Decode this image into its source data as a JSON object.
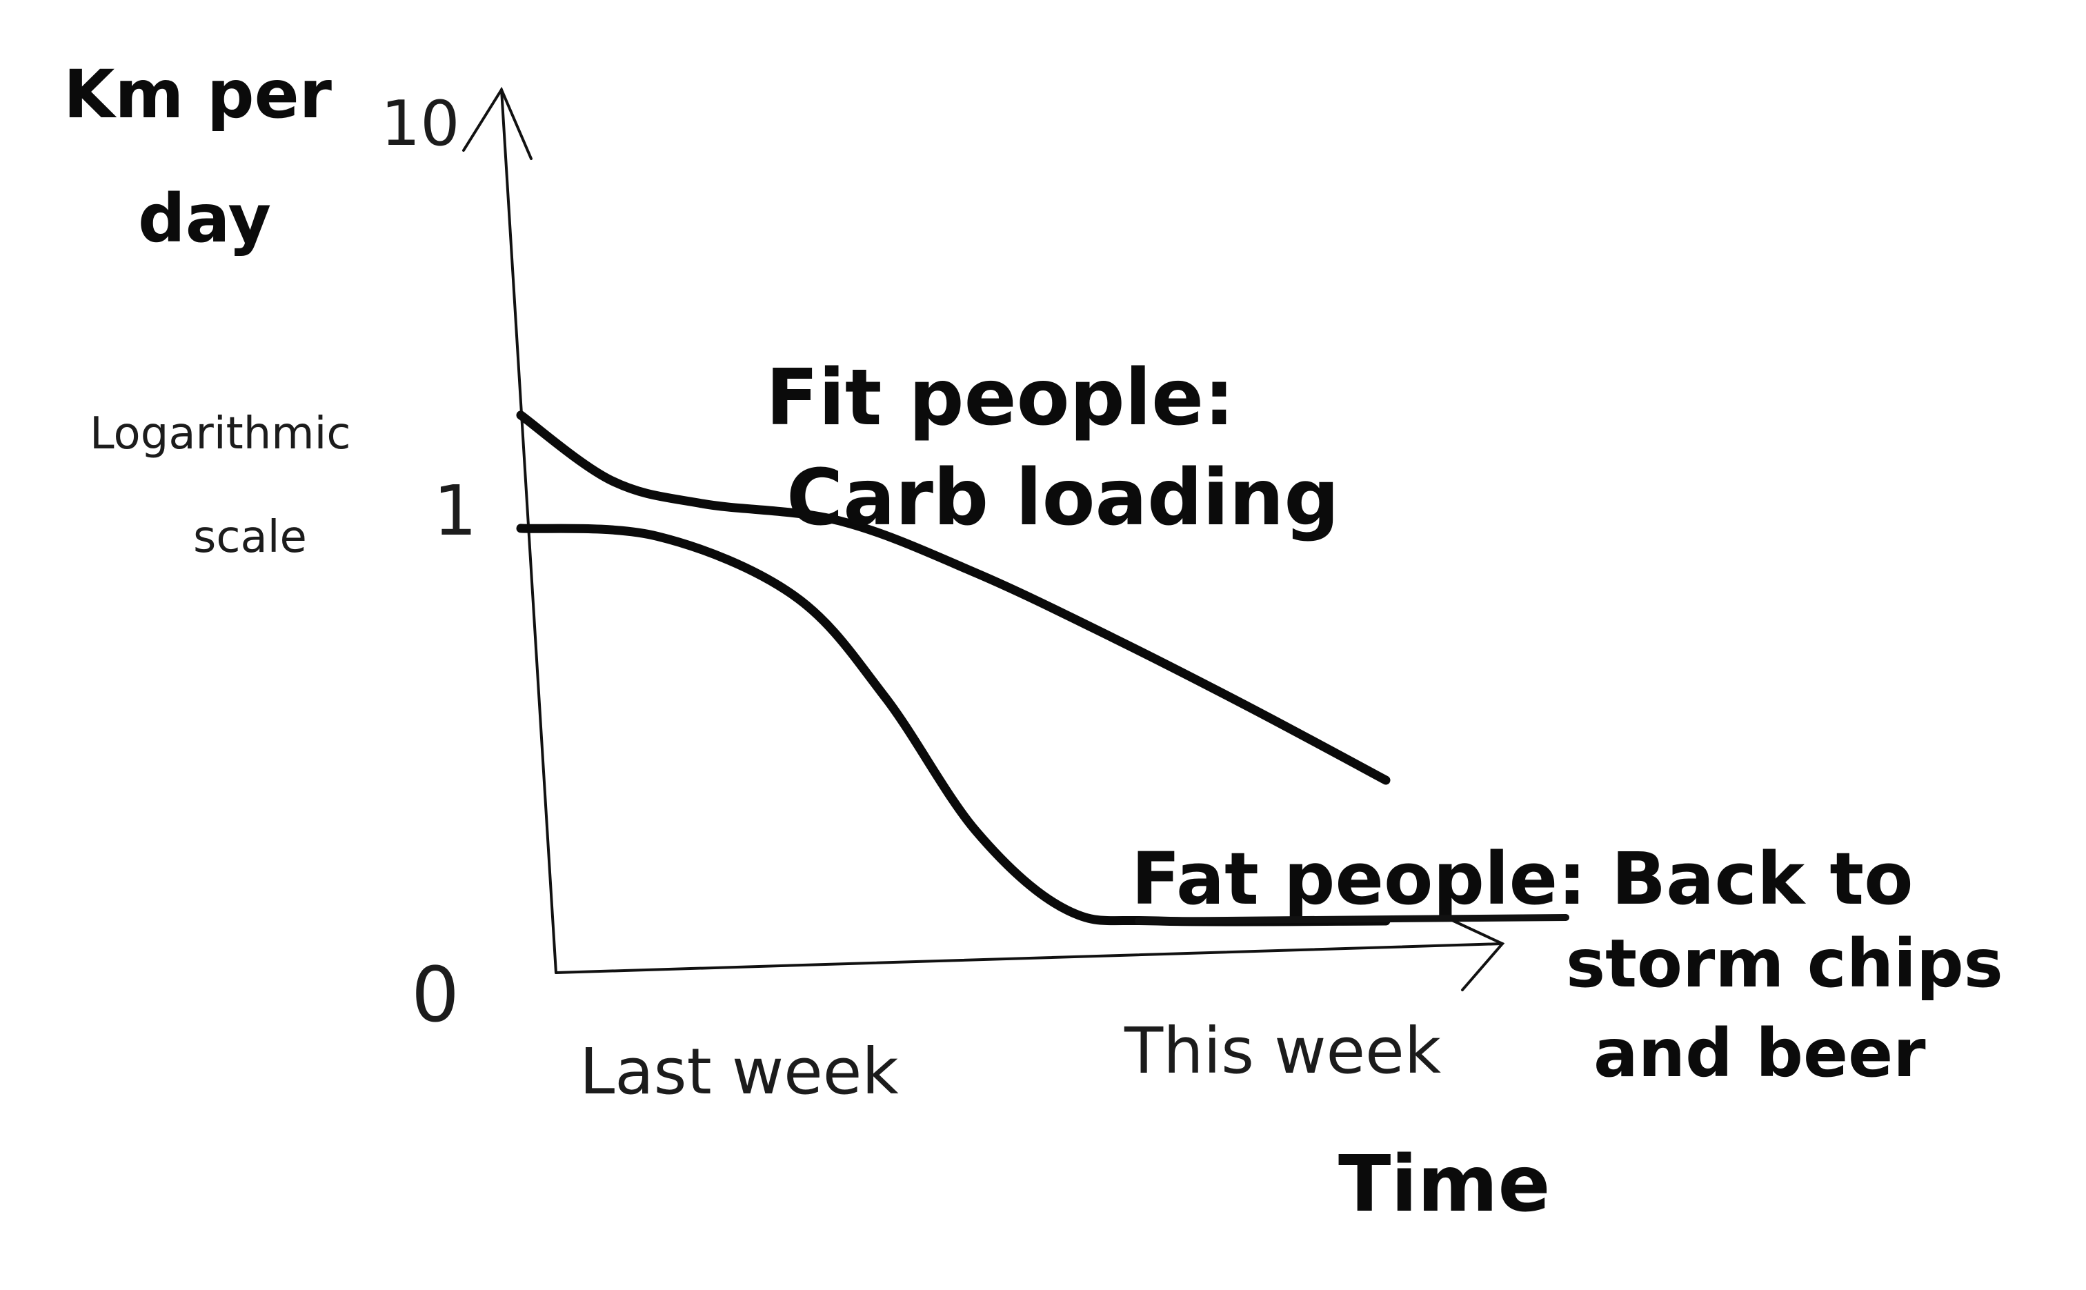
{
  "chart_data": {
    "type": "line",
    "ylabel": "Km per day",
    "y_scale_note": "Logarithmic scale",
    "xlabel": "Time",
    "y_ticks": [
      "0",
      "1",
      "10"
    ],
    "x_ticks": [
      "Last week",
      "This week"
    ],
    "yscale": "log",
    "grid": false,
    "legend": "none",
    "series": [
      {
        "name": "Fit people: Carb loading",
        "annotation_line1": "Fit people:",
        "annotation_line2": "Carb loading",
        "x": [
          0,
          0.1,
          0.2,
          0.35,
          0.5,
          0.65,
          0.8,
          0.95
        ],
        "y": [
          1.8,
          1.25,
          1.1,
          1.0,
          0.7,
          0.45,
          0.28,
          0.17
        ]
      },
      {
        "name": "Fat people: Back to storm chips and beer",
        "annotation_line1": "Fat people: Back to",
        "annotation_line2": "storm chips",
        "annotation_line3": "and beer",
        "x": [
          0,
          0.15,
          0.3,
          0.4,
          0.5,
          0.6,
          0.7,
          0.95
        ],
        "y": [
          0.95,
          0.9,
          0.6,
          0.3,
          0.12,
          0.07,
          0.065,
          0.065
        ]
      }
    ],
    "colors": {
      "ink": "#0a0a0a",
      "paper": "#ffffff"
    }
  }
}
